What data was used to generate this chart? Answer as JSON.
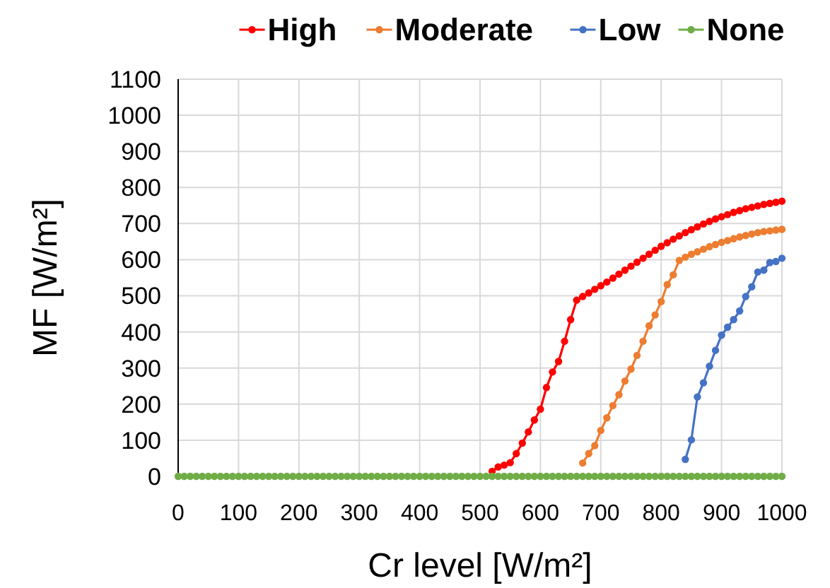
{
  "chart_data": {
    "type": "line",
    "xlabel": "Cr level [W/m²]",
    "ylabel": "MF [W/m²]",
    "x": [
      0,
      10,
      20,
      30,
      40,
      50,
      60,
      70,
      80,
      90,
      100,
      110,
      120,
      130,
      140,
      150,
      160,
      170,
      180,
      190,
      200,
      210,
      220,
      230,
      240,
      250,
      260,
      270,
      280,
      290,
      300,
      310,
      320,
      330,
      340,
      350,
      360,
      370,
      380,
      390,
      400,
      410,
      420,
      430,
      440,
      450,
      460,
      470,
      480,
      490,
      500,
      510,
      520,
      530,
      540,
      550,
      560,
      570,
      580,
      590,
      600,
      610,
      620,
      630,
      640,
      650,
      660,
      670,
      680,
      690,
      700,
      710,
      720,
      730,
      740,
      750,
      760,
      770,
      780,
      790,
      800,
      810,
      820,
      830,
      840,
      850,
      860,
      870,
      880,
      890,
      900,
      910,
      920,
      930,
      940,
      950,
      960,
      970,
      980,
      990,
      1000
    ],
    "series": [
      {
        "name": "High",
        "color": "#ff0000",
        "values": [
          null,
          null,
          null,
          null,
          null,
          null,
          null,
          null,
          null,
          null,
          null,
          null,
          null,
          null,
          null,
          null,
          null,
          null,
          null,
          null,
          null,
          null,
          null,
          null,
          null,
          null,
          null,
          null,
          null,
          null,
          null,
          null,
          null,
          null,
          null,
          null,
          null,
          null,
          null,
          null,
          null,
          null,
          null,
          null,
          null,
          null,
          null,
          null,
          null,
          null,
          null,
          null,
          14,
          26,
          31,
          38,
          63,
          92,
          123,
          156,
          186,
          246,
          289,
          318,
          374,
          434,
          488,
          498,
          508,
          518,
          528,
          538,
          549,
          560,
          571,
          582,
          593,
          604,
          615,
          626,
          637,
          647,
          657,
          666,
          675,
          683,
          691,
          699,
          706,
          713,
          719,
          725,
          731,
          736,
          741,
          745,
          749,
          753,
          756,
          759,
          762
        ]
      },
      {
        "name": "Moderate",
        "color": "#ed7d31",
        "values": [
          null,
          null,
          null,
          null,
          null,
          null,
          null,
          null,
          null,
          null,
          null,
          null,
          null,
          null,
          null,
          null,
          null,
          null,
          null,
          null,
          null,
          null,
          null,
          null,
          null,
          null,
          null,
          null,
          null,
          null,
          null,
          null,
          null,
          null,
          null,
          null,
          null,
          null,
          null,
          null,
          null,
          null,
          null,
          null,
          null,
          null,
          null,
          null,
          null,
          null,
          null,
          null,
          null,
          null,
          null,
          null,
          null,
          null,
          null,
          null,
          null,
          null,
          null,
          null,
          null,
          null,
          null,
          37,
          63,
          85,
          127,
          162,
          196,
          226,
          264,
          297,
          335,
          374,
          417,
          447,
          484,
          531,
          558,
          598,
          607,
          615,
          622,
          629,
          636,
          642,
          648,
          653,
          658,
          663,
          667,
          671,
          675,
          678,
          680,
          682,
          684
        ]
      },
      {
        "name": "Low",
        "color": "#4472c4",
        "values": [
          null,
          null,
          null,
          null,
          null,
          null,
          null,
          null,
          null,
          null,
          null,
          null,
          null,
          null,
          null,
          null,
          null,
          null,
          null,
          null,
          null,
          null,
          null,
          null,
          null,
          null,
          null,
          null,
          null,
          null,
          null,
          null,
          null,
          null,
          null,
          null,
          null,
          null,
          null,
          null,
          null,
          null,
          null,
          null,
          null,
          null,
          null,
          null,
          null,
          null,
          null,
          null,
          null,
          null,
          null,
          null,
          null,
          null,
          null,
          null,
          null,
          null,
          null,
          null,
          null,
          null,
          null,
          null,
          null,
          null,
          null,
          null,
          null,
          null,
          null,
          null,
          null,
          null,
          null,
          null,
          null,
          null,
          null,
          null,
          47,
          101,
          220,
          259,
          305,
          349,
          391,
          413,
          434,
          458,
          498,
          525,
          566,
          571,
          592,
          595,
          604
        ]
      },
      {
        "name": "None",
        "color": "#70ad47",
        "values": [
          0,
          0,
          0,
          0,
          0,
          0,
          0,
          0,
          0,
          0,
          0,
          0,
          0,
          0,
          0,
          0,
          0,
          0,
          0,
          0,
          0,
          0,
          0,
          0,
          0,
          0,
          0,
          0,
          0,
          0,
          0,
          0,
          0,
          0,
          0,
          0,
          0,
          0,
          0,
          0,
          0,
          0,
          0,
          0,
          0,
          0,
          0,
          0,
          0,
          0,
          0,
          0,
          0,
          0,
          0,
          0,
          0,
          0,
          0,
          0,
          0,
          0,
          0,
          0,
          0,
          0,
          0,
          0,
          0,
          0,
          0,
          0,
          0,
          0,
          0,
          0,
          0,
          0,
          0,
          0,
          0,
          0,
          0,
          0,
          0,
          0,
          0,
          0,
          0,
          0,
          0,
          0,
          0,
          0,
          0,
          0,
          0,
          0,
          0,
          0,
          0
        ]
      }
    ],
    "xlim": [
      0,
      1000
    ],
    "xticks": [
      0,
      100,
      200,
      300,
      400,
      500,
      600,
      700,
      800,
      900,
      1000
    ],
    "ylim": [
      0,
      1100
    ],
    "yticks": [
      0,
      100,
      200,
      300,
      400,
      500,
      600,
      700,
      800,
      900,
      1000,
      1100
    ],
    "grid": true,
    "legend": "top",
    "marker": "circle",
    "line_style": "solid"
  }
}
